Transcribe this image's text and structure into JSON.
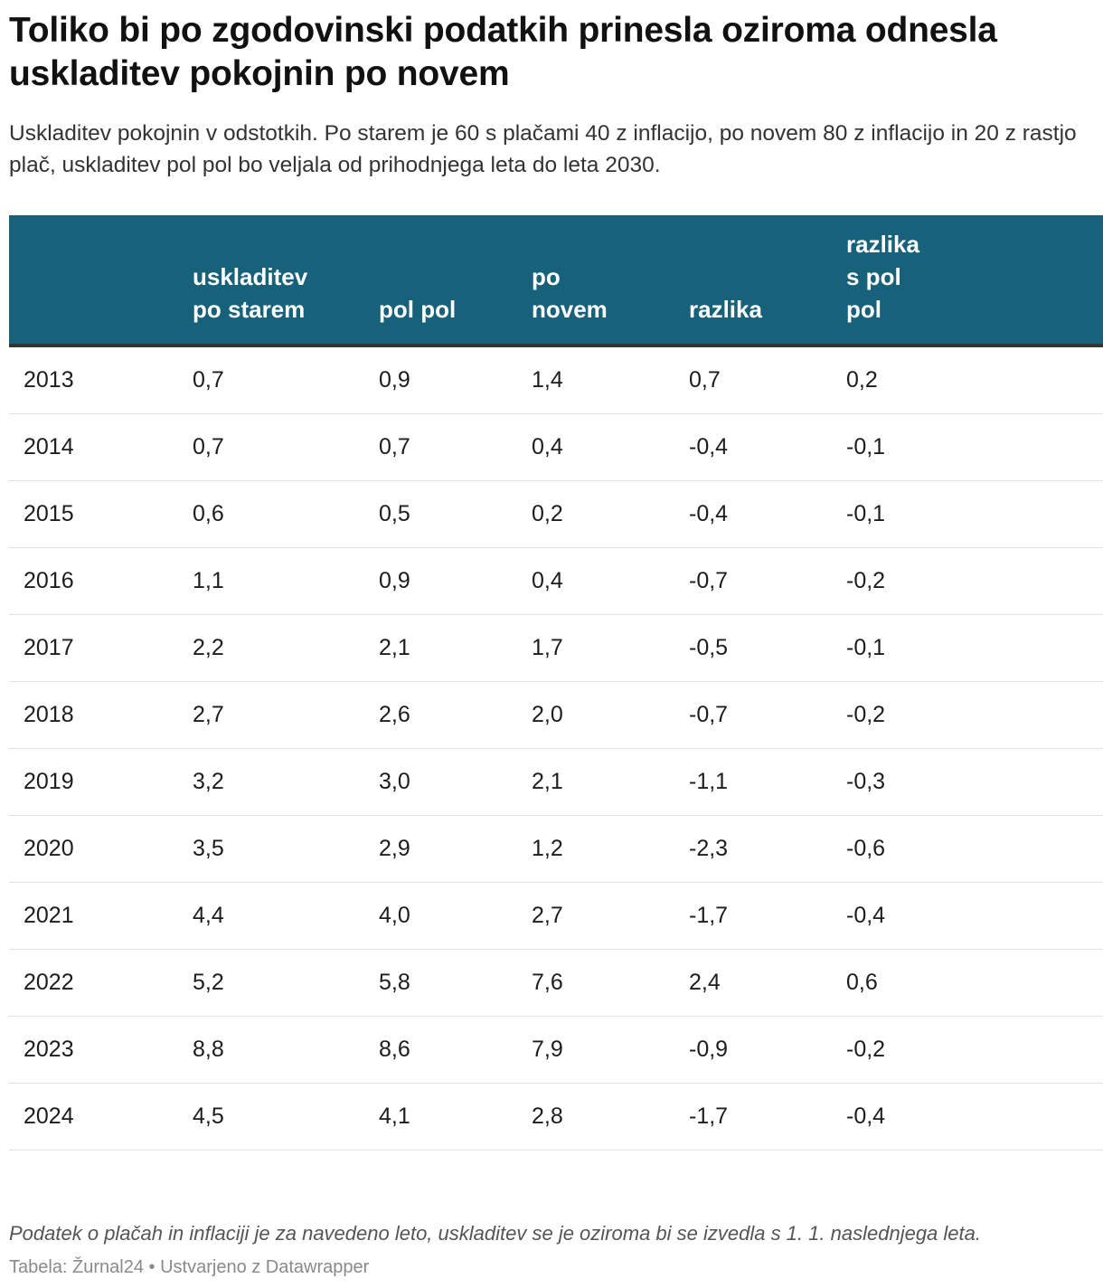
{
  "title": "Toliko bi po zgodovinski podatkih prinesla oziroma odnesla uskladitev pokojnin po novem",
  "subtitle": "Uskladitev pokojnin v odstotkih. Po starem je 60 s plačami 40 z inflacijo, po novem 80 z inflacijo in 20 z rastjo plač, uskladitev pol pol bo veljala od prihodnjega leta do leta 2030.",
  "colors": {
    "header_bg": "#17617a",
    "header_text": "#ffffff",
    "row_border": "#e2e2e2"
  },
  "chart_data": {
    "type": "table",
    "columns": [
      {
        "key": "year",
        "lines": []
      },
      {
        "key": "po_starem",
        "lines": [
          "uskladitev",
          "po starem"
        ]
      },
      {
        "key": "pol_pol",
        "lines": [
          "pol pol"
        ]
      },
      {
        "key": "po_novem",
        "lines": [
          "po",
          "novem"
        ]
      },
      {
        "key": "razlika",
        "lines": [
          "razlika"
        ]
      },
      {
        "key": "razlika_pol_pol",
        "lines": [
          "razlika",
          "s pol",
          "pol"
        ]
      }
    ],
    "rows": [
      [
        "2013",
        "0,7",
        "0,9",
        "1,4",
        "0,7",
        "0,2"
      ],
      [
        "2014",
        "0,7",
        "0,7",
        "0,4",
        "-0,4",
        "-0,1"
      ],
      [
        "2015",
        "0,6",
        "0,5",
        "0,2",
        "-0,4",
        "-0,1"
      ],
      [
        "2016",
        "1,1",
        "0,9",
        "0,4",
        "-0,7",
        "-0,2"
      ],
      [
        "2017",
        "2,2",
        "2,1",
        "1,7",
        "-0,5",
        "-0,1"
      ],
      [
        "2018",
        "2,7",
        "2,6",
        "2,0",
        "-0,7",
        "-0,2"
      ],
      [
        "2019",
        "3,2",
        "3,0",
        "2,1",
        "-1,1",
        "-0,3"
      ],
      [
        "2020",
        "3,5",
        "2,9",
        "1,2",
        "-2,3",
        "-0,6"
      ],
      [
        "2021",
        "4,4",
        "4,0",
        "2,7",
        "-1,7",
        "-0,4"
      ],
      [
        "2022",
        "5,2",
        "5,8",
        "7,6",
        "2,4",
        "0,6"
      ],
      [
        "2023",
        "8,8",
        "8,6",
        "7,9",
        "-0,9",
        "-0,2"
      ],
      [
        "2024",
        "4,5",
        "4,1",
        "2,8",
        "-1,7",
        "-0,4"
      ]
    ]
  },
  "notes": "Podatek o plačah in inflaciji je za navedeno leto, uskladitev se je oziroma bi se izvedla s 1. 1. naslednjega leta.",
  "footer": "Tabela: Žurnal24 • Ustvarjeno z Datawrapper"
}
